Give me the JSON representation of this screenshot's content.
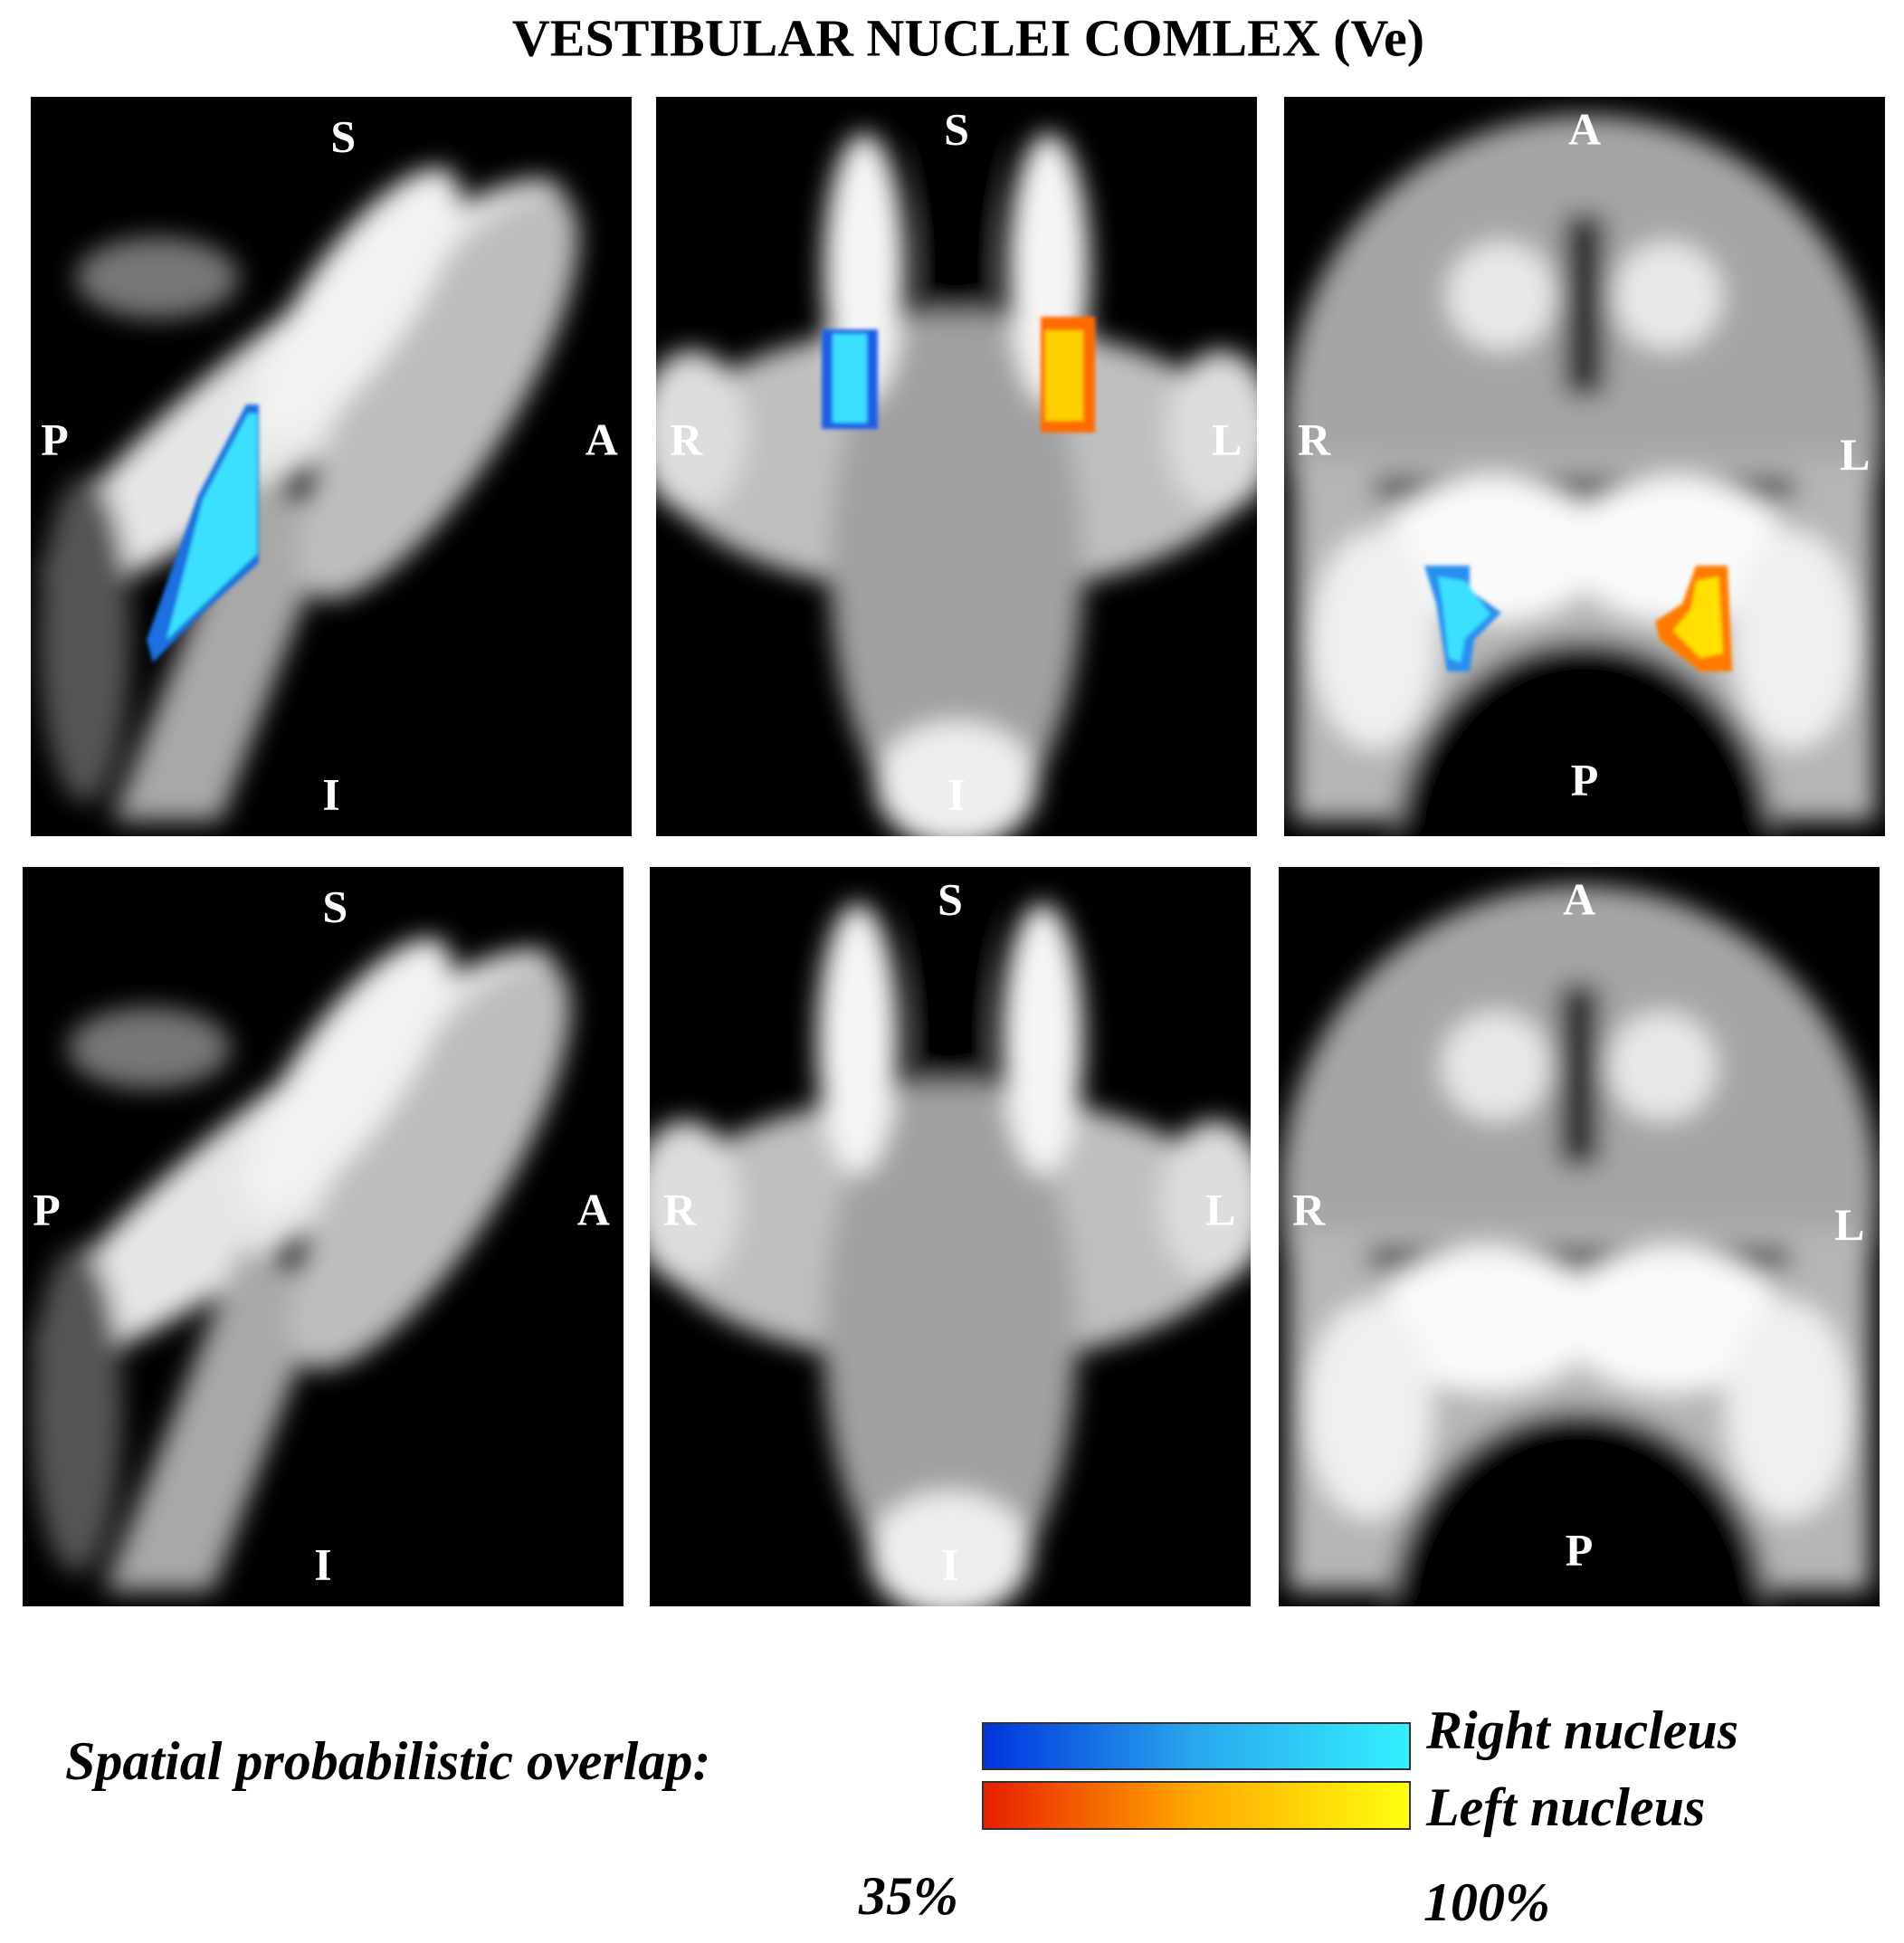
{
  "title": "VESTIBULAR NUCLEI COMLEX (Ve)",
  "rows": [
    {
      "panels": [
        {
          "labels": {
            "top": "S",
            "bottom": "I",
            "left": "P",
            "right": "A"
          }
        },
        {
          "labels": {
            "top": "S",
            "bottom": "I",
            "left": "R",
            "right": "L"
          }
        },
        {
          "labels": {
            "top": "A",
            "bottom": "P",
            "left": "R",
            "right": "L"
          }
        }
      ]
    },
    {
      "panels": [
        {
          "labels": {
            "top": "S",
            "bottom": "I",
            "left": "P",
            "right": "A"
          }
        },
        {
          "labels": {
            "top": "S",
            "bottom": "I",
            "left": "R",
            "right": "L"
          }
        },
        {
          "labels": {
            "top": "A",
            "bottom": "P",
            "left": "R",
            "right": "L"
          }
        }
      ]
    }
  ],
  "legend": {
    "label": "Spatial probabilistic overlap:",
    "entries": [
      "Right nucleus",
      "Left nucleus"
    ],
    "min": "35%",
    "max": "100%"
  }
}
